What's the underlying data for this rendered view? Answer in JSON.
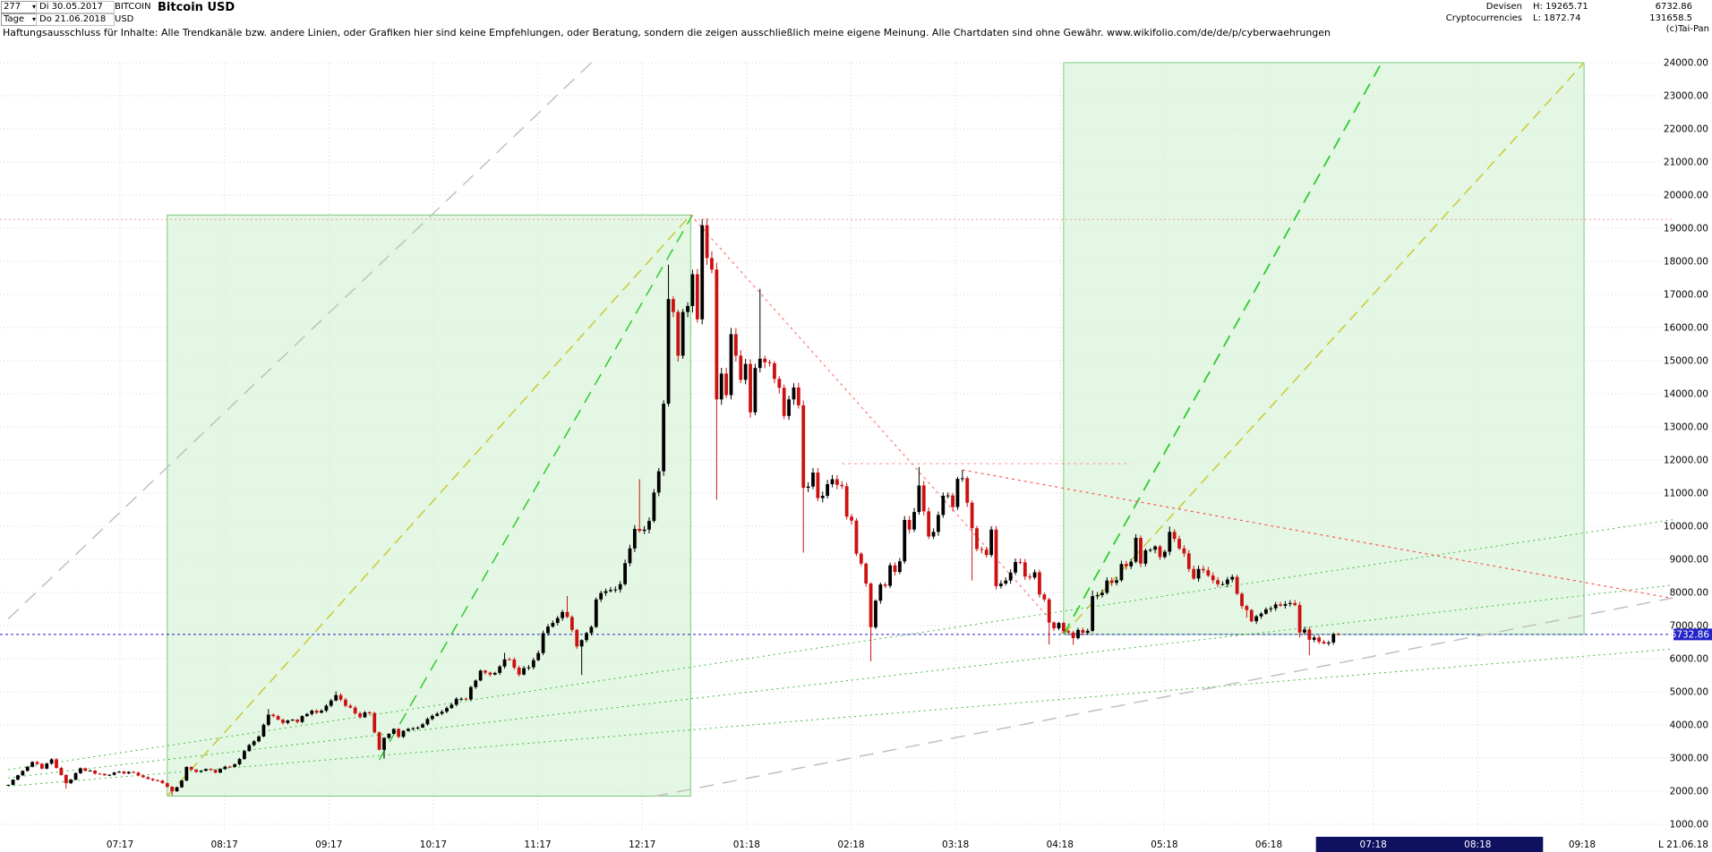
{
  "header": {
    "bars_count": "277",
    "period_label": "Tage",
    "date_from": "Di 30.05.2017",
    "date_to": "Do 21.06.2018",
    "symbol": "BITCOIN",
    "currency": "USD",
    "title": "Bitcoin USD",
    "category_line1": "Devisen",
    "category_line2": "Cryptocurrencies",
    "high_label": "H: 19265.71",
    "low_label": "L: 1872.74",
    "last_price_text": "6732.86",
    "secondary_value": "131658.5",
    "copyright": "(c)Tai-Pan"
  },
  "disclaimer": "Haftungsausschluss für Inhalte: Alle Trendkanäle bzw. andere Linien, oder Grafiken hier sind keine Empfehlungen, oder Beratung, sondern die zeigen ausschließlich meine eigene Meinung. Alle Chartdaten sind ohne Gewähr.  www.wikifolio.com/de/de/p/cyberwaehrungen",
  "chart_data": {
    "type": "candlestick",
    "title": "Bitcoin USD",
    "period": "Tage",
    "date_range": {
      "from": "Di 30.05.2017",
      "to": "Do 21.06.2018"
    },
    "bars_total": 277,
    "high": 19265.71,
    "low": 1872.74,
    "last_price": 6732.86,
    "last_marker": "L",
    "last_date_label": "21.06.18",
    "y_axis": {
      "min": 1000,
      "max": 24000,
      "step": 1000,
      "label_decimals": 2
    },
    "x_axis": {
      "labels": [
        "07:17",
        "08:17",
        "09:17",
        "10:17",
        "11:17",
        "12:17",
        "01:18",
        "02:18",
        "03:18",
        "04:18",
        "05:18",
        "06:18",
        "07:18",
        "08:18",
        "09:18"
      ],
      "highlighted_labels": [
        "07:18",
        "08:18"
      ]
    },
    "colors": {
      "up": "#000000",
      "down": "#cc1111",
      "grid": "#d6d6d6",
      "channel_fill": "rgba(214,242,214,0.65)",
      "channel_stroke": "#7dc87d",
      "last_price_line": "#2323c8",
      "high_line": "#ff9999",
      "range_bar": "#101060",
      "badge_text": "#ffffff"
    },
    "channels": [
      {
        "name": "uptrend-channel-2017",
        "i1": 33,
        "i2": 141.6,
        "p1": 1850,
        "p2": 19400
      },
      {
        "name": "projection-channel-2018",
        "i1": 219,
        "i2": 327,
        "p1": 6732.86,
        "p2": 24000
      }
    ],
    "hlines": [
      {
        "name": "high-resistance-line",
        "price": 19265.71,
        "color": "#ff9999",
        "dash": "2,3",
        "w": 1
      },
      {
        "name": "last-price-line",
        "price": 6732.86,
        "color": "#2323c8",
        "dash": "3,3",
        "w": 1
      }
    ],
    "trendlines": [
      {
        "name": "channel1-diagonal-yellow",
        "i1": 33,
        "p1": 1850,
        "i2": 141.6,
        "p2": 19400,
        "color": "#c9c932",
        "dash": "12,7",
        "w": 1.5
      },
      {
        "name": "channel1-inner-green",
        "i1": 77,
        "p1": 2950,
        "i2": 142,
        "p2": 19400,
        "color": "#2ecc2e",
        "dash": "14,9",
        "w": 1.5
      },
      {
        "name": "channel2-diagonal-yellow",
        "i1": 219,
        "p1": 6732,
        "i2": 327,
        "p2": 24000,
        "color": "#c9c932",
        "dash": "12,7",
        "w": 1.5
      },
      {
        "name": "channel2-inner-green",
        "i1": 219,
        "p1": 6732,
        "i2": 285,
        "p2": 24000,
        "color": "#2ecc2e",
        "dash": "14,9",
        "w": 1.8
      },
      {
        "name": "downtrend-from-peak-red",
        "i1": 141.6,
        "p1": 19400,
        "i2": 219,
        "p2": 6732,
        "color": "#ff7777",
        "dash": "3,4",
        "w": 1.2
      },
      {
        "name": "resistance-11900-red",
        "i1": 173,
        "p1": 11890,
        "i2": 233,
        "p2": 11890,
        "color": "#ff9999",
        "dash": "3,4",
        "w": 1.2
      },
      {
        "name": "downtrend-march-red",
        "i1": 198,
        "p1": 11700,
        "i2": 350,
        "p2": 7700,
        "color": "#ff5555",
        "dash": "3,4",
        "w": 1.2
      },
      {
        "name": "fan-green-upper",
        "i1": 0,
        "p1": 2650,
        "i2": 350,
        "p2": 10300,
        "color": "#3dbb3d",
        "dash": "2,4",
        "w": 1
      },
      {
        "name": "fan-green-middle",
        "i1": 0,
        "p1": 2400,
        "i2": 350,
        "p2": 8300,
        "color": "#3dbb3d",
        "dash": "2,4",
        "w": 1
      },
      {
        "name": "fan-green-lower",
        "i1": 0,
        "p1": 2150,
        "i2": 350,
        "p2": 6350,
        "color": "#3dbb3d",
        "dash": "2,4",
        "w": 1
      },
      {
        "name": "gray-steep-trend",
        "i1": 0,
        "p1": 7200,
        "i2": 121,
        "p2": 24000,
        "color": "#c0c0c0",
        "dash": "16,10",
        "w": 1.5
      },
      {
        "name": "gray-support-trend",
        "i1": 134,
        "p1": 1840,
        "i2": 353,
        "p2": 8050,
        "color": "#c0c0c0",
        "dash": "16,10",
        "w": 1.5
      }
    ],
    "waypoints": [
      [
        0,
        2190
      ],
      [
        2,
        2480
      ],
      [
        5,
        2880
      ],
      [
        7,
        2680
      ],
      [
        9,
        2960
      ],
      [
        12,
        2240,
        2076
      ],
      [
        15,
        2690
      ],
      [
        18,
        2530
      ],
      [
        20,
        2480
      ],
      [
        23,
        2590
      ],
      [
        26,
        2560
      ],
      [
        28,
        2420
      ],
      [
        30,
        2330
      ],
      [
        32,
        2240
      ],
      [
        34,
        1995,
        1872.74
      ],
      [
        36,
        2320
      ],
      [
        37,
        2730
      ],
      [
        39,
        2580
      ],
      [
        41,
        2670
      ],
      [
        43,
        2560
      ],
      [
        45,
        2740
      ],
      [
        47,
        2810
      ],
      [
        49,
        3210
      ],
      [
        50,
        3390
      ],
      [
        52,
        3650
      ],
      [
        54,
        4310,
        null,
        4480
      ],
      [
        56,
        4160
      ],
      [
        57,
        4060
      ],
      [
        59,
        4160
      ],
      [
        60,
        4090
      ],
      [
        62,
        4330
      ],
      [
        64,
        4370
      ],
      [
        66,
        4580
      ],
      [
        67,
        4735
      ],
      [
        68,
        4900,
        null,
        5010
      ],
      [
        70,
        4580
      ],
      [
        72,
        4350
      ],
      [
        73,
        4230
      ],
      [
        75,
        4360
      ],
      [
        77,
        3250
      ],
      [
        78,
        3610,
        2980
      ],
      [
        80,
        3880
      ],
      [
        81,
        3640
      ],
      [
        83,
        3880
      ],
      [
        85,
        3920
      ],
      [
        87,
        4180
      ],
      [
        89,
        4340
      ],
      [
        90,
        4400
      ],
      [
        92,
        4610
      ],
      [
        94,
        4790
      ],
      [
        95,
        4770
      ],
      [
        97,
        5340
      ],
      [
        98,
        5640
      ],
      [
        100,
        5520
      ],
      [
        101,
        5570
      ],
      [
        103,
        5980,
        null,
        6180
      ],
      [
        105,
        5730
      ],
      [
        106,
        5520
      ],
      [
        108,
        5740
      ],
      [
        110,
        6170
      ],
      [
        111,
        6770
      ],
      [
        113,
        7080
      ],
      [
        115,
        7410
      ],
      [
        116,
        7260,
        null,
        7890
      ],
      [
        118,
        6370
      ],
      [
        119,
        6560,
        5507
      ],
      [
        121,
        6960
      ],
      [
        122,
        7790
      ],
      [
        124,
        8040
      ],
      [
        126,
        8090
      ],
      [
        127,
        8250
      ],
      [
        129,
        9330
      ],
      [
        130,
        9920
      ],
      [
        131,
        9860,
        null,
        11420
      ],
      [
        133,
        10160
      ],
      [
        135,
        11660
      ],
      [
        136,
        13700
      ],
      [
        137,
        16860,
        null,
        17900
      ],
      [
        138,
        16470
      ],
      [
        139,
        15150
      ],
      [
        140,
        16470
      ],
      [
        141,
        16650
      ],
      [
        142,
        17610
      ],
      [
        143,
        16250
      ],
      [
        144,
        19090,
        null,
        19265.71
      ],
      [
        145,
        18100
      ],
      [
        146,
        17750
      ],
      [
        147,
        13830,
        10800
      ],
      [
        148,
        14610
      ],
      [
        149,
        13960
      ],
      [
        150,
        15800
      ],
      [
        151,
        15150
      ],
      [
        152,
        14420
      ],
      [
        153,
        14900
      ],
      [
        154,
        13440
      ],
      [
        155,
        14780
      ],
      [
        156,
        15060,
        null,
        17170
      ],
      [
        157,
        14950
      ],
      [
        158,
        14920
      ],
      [
        159,
        14450
      ],
      [
        160,
        14180
      ],
      [
        161,
        13330
      ],
      [
        162,
        13830
      ],
      [
        163,
        14190
      ],
      [
        164,
        13650
      ],
      [
        165,
        11160,
        9205
      ],
      [
        166,
        11200
      ],
      [
        167,
        11620
      ],
      [
        168,
        10850
      ],
      [
        169,
        10920
      ],
      [
        170,
        11270
      ],
      [
        171,
        11420
      ],
      [
        172,
        11250
      ],
      [
        173,
        11210
      ],
      [
        174,
        10290
      ],
      [
        175,
        10170
      ],
      [
        176,
        9170
      ],
      [
        177,
        8870
      ],
      [
        178,
        8270
      ],
      [
        179,
        6950,
        5920
      ],
      [
        180,
        7750
      ],
      [
        181,
        8240
      ],
      [
        182,
        8200
      ],
      [
        183,
        8820
      ],
      [
        184,
        8620
      ],
      [
        185,
        8940
      ],
      [
        186,
        10190
      ],
      [
        187,
        9900
      ],
      [
        188,
        10430
      ],
      [
        189,
        11230,
        null,
        11790
      ],
      [
        190,
        10450
      ],
      [
        191,
        9690
      ],
      [
        192,
        9830
      ],
      [
        193,
        10340
      ],
      [
        194,
        10920
      ],
      [
        195,
        10930
      ],
      [
        196,
        10580
      ],
      [
        197,
        11430
      ],
      [
        198,
        11450,
        null,
        11700
      ],
      [
        199,
        10710
      ],
      [
        200,
        9940,
        8360
      ],
      [
        201,
        9310
      ],
      [
        202,
        9290
      ],
      [
        203,
        9130
      ],
      [
        204,
        9900
      ],
      [
        205,
        8190
      ],
      [
        206,
        8270
      ],
      [
        207,
        8360
      ],
      [
        208,
        8600
      ],
      [
        209,
        8920
      ],
      [
        210,
        8910
      ],
      [
        211,
        8480
      ],
      [
        212,
        8450
      ],
      [
        213,
        8610
      ],
      [
        214,
        7940
      ],
      [
        215,
        7790
      ],
      [
        216,
        7090,
        6430
      ],
      [
        217,
        6920
      ],
      [
        218,
        7080
      ],
      [
        219,
        6830
      ],
      [
        220,
        6790
      ],
      [
        221,
        6620,
        6420
      ],
      [
        222,
        6870
      ],
      [
        223,
        6780
      ],
      [
        224,
        6840
      ],
      [
        225,
        7890,
        null,
        8060
      ],
      [
        226,
        7920
      ],
      [
        227,
        7990
      ],
      [
        228,
        8360
      ],
      [
        229,
        8290
      ],
      [
        230,
        8370
      ],
      [
        231,
        8860
      ],
      [
        232,
        8790
      ],
      [
        233,
        8930
      ],
      [
        234,
        9650,
        null,
        9760
      ],
      [
        235,
        8870
      ],
      [
        236,
        9270
      ],
      [
        237,
        9290
      ],
      [
        238,
        9390
      ],
      [
        239,
        9070
      ],
      [
        240,
        9230
      ],
      [
        241,
        9830,
        null,
        9990
      ],
      [
        242,
        9620
      ],
      [
        243,
        9330
      ],
      [
        244,
        9180
      ],
      [
        245,
        8710
      ],
      [
        246,
        8420
      ],
      [
        247,
        8710
      ],
      [
        248,
        8670
      ],
      [
        249,
        8510
      ],
      [
        250,
        8370
      ],
      [
        251,
        8250
      ],
      [
        252,
        8250
      ],
      [
        253,
        8390
      ],
      [
        254,
        8470
      ],
      [
        255,
        7960
      ],
      [
        256,
        7590
      ],
      [
        257,
        7470,
        7240
      ],
      [
        258,
        7130
      ],
      [
        259,
        7280
      ],
      [
        260,
        7360
      ],
      [
        261,
        7490
      ],
      [
        262,
        7520
      ],
      [
        263,
        7640
      ],
      [
        264,
        7600
      ],
      [
        265,
        7650
      ],
      [
        266,
        7680
      ],
      [
        267,
        7620
      ],
      [
        268,
        6790,
        6640
      ],
      [
        269,
        6880
      ],
      [
        270,
        6570,
        6110
      ],
      [
        271,
        6640
      ],
      [
        272,
        6510
      ],
      [
        273,
        6460
      ],
      [
        274,
        6490
      ],
      [
        275,
        6740
      ],
      [
        276,
        6732.86
      ]
    ]
  },
  "bottom": {
    "range_from": "07:18",
    "range_to": "08:18"
  }
}
